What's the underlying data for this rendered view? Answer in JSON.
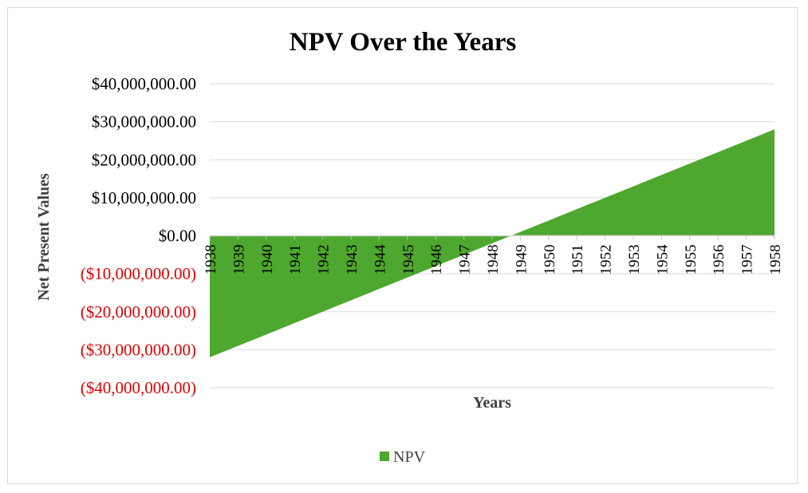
{
  "chart_data": {
    "type": "area",
    "title": "NPV Over the Years",
    "xlabel": "Years",
    "ylabel": "Net Present Values",
    "categories": [
      "1938",
      "1939",
      "1940",
      "1941",
      "1942",
      "1943",
      "1944",
      "1945",
      "1946",
      "1947",
      "1948",
      "1949",
      "1950",
      "1951",
      "1952",
      "1953",
      "1954",
      "1955",
      "1956",
      "1957",
      "1958"
    ],
    "series": [
      {
        "name": "NPV",
        "color": "#4ea72e",
        "values": [
          -32000000,
          -29000000,
          -26000000,
          -23000000,
          -20000000,
          -17000000,
          -14000000,
          -11000000,
          -8000000,
          -5000000,
          -2000000,
          1000000,
          4000000,
          7000000,
          10000000,
          13000000,
          16000000,
          19000000,
          22000000,
          25000000,
          28000000
        ]
      }
    ],
    "ylim": [
      -40000000,
      40000000
    ],
    "yticks": [
      40000000,
      30000000,
      20000000,
      10000000,
      0,
      -10000000,
      -20000000,
      -30000000,
      -40000000
    ],
    "ytick_labels": [
      "$40,000,000.00",
      "$30,000,000.00",
      "$20,000,000.00",
      "$10,000,000.00",
      "$0.00",
      "($10,000,000.00)",
      "($20,000,000.00)",
      "($30,000,000.00)",
      "($40,000,000.00)"
    ],
    "ytick_colors": {
      "positive": "#000000",
      "negative": "#e00000"
    },
    "grid": true,
    "gridline_color": "#d9d9d9",
    "legend_position": "bottom"
  }
}
